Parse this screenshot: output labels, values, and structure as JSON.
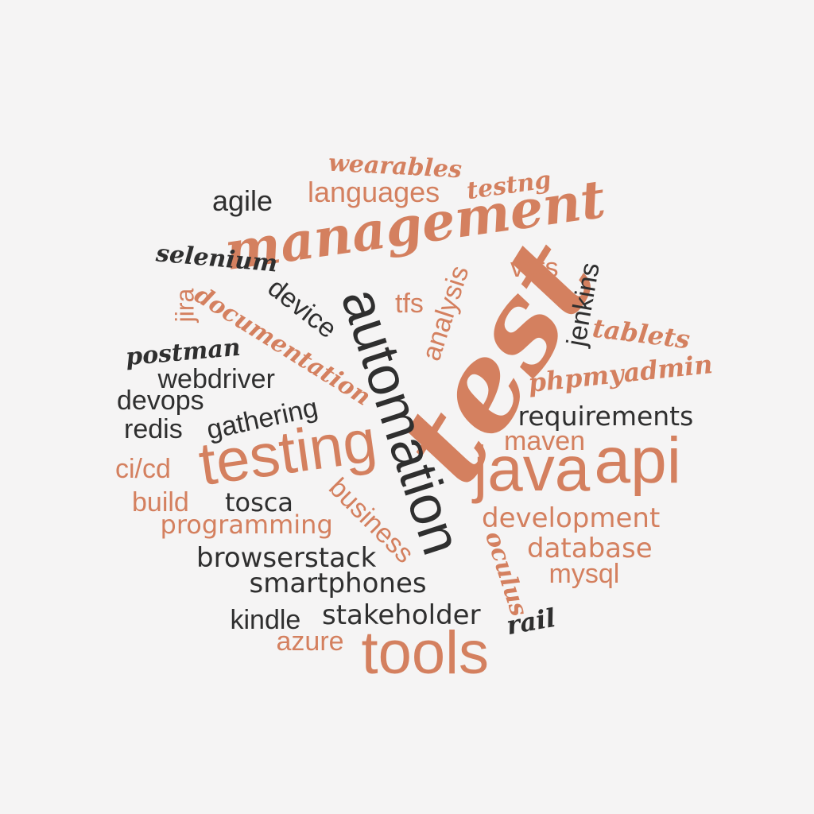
{
  "words": {
    "test": "test",
    "management": "management",
    "automation": "automation",
    "testing": "testing",
    "java": "java",
    "api": "api",
    "tools": "tools",
    "wearables": "wearables",
    "testng": "testng",
    "languages": "languages",
    "agile": "agile",
    "selenium": "selenium",
    "device": "device",
    "jira": "jira",
    "documentation": "documentation",
    "postman": "postman",
    "webdriver": "webdriver",
    "devops": "devops",
    "redis": "redis",
    "gathering": "gathering",
    "cicd": "ci/cd",
    "build": "build",
    "programming": "programming",
    "tosca": "tosca",
    "business": "business",
    "browserstack": "browserstack",
    "smartphones": "smartphones",
    "kindle": "kindle",
    "stakeholder": "stakeholder",
    "azure": "azure",
    "tfs": "tfs",
    "analysis": "analysis",
    "vsts": "vsts",
    "jenkins": "jenkins",
    "tablets": "tablets",
    "phpmyadmin": "phpmyadmin",
    "requirements": "requirements",
    "maven": "maven",
    "development": "development",
    "database": "database",
    "mysql": "mysql",
    "oculus": "oculus",
    "rail": "rail"
  },
  "colors": {
    "salmon": "#d4805f",
    "dark": "#2f2f2f",
    "background": "#f5f4f4"
  }
}
